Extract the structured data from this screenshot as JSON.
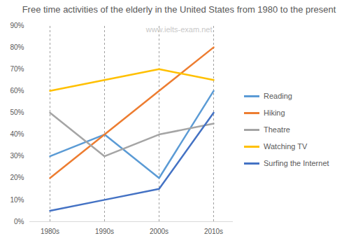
{
  "chart_data": {
    "type": "line",
    "title": "Free time activities of the elderly in the United States from 1980 to the present",
    "annotations": [
      "www.ielts-exam.net"
    ],
    "categories": [
      "1980s",
      "1990s",
      "2000s",
      "2010s"
    ],
    "series": [
      {
        "name": "Reading",
        "color": "#5b9bd5",
        "values": [
          30,
          40,
          20,
          60
        ]
      },
      {
        "name": "Hiking",
        "color": "#ed7d31",
        "values": [
          20,
          40,
          60,
          80
        ]
      },
      {
        "name": "Theatre",
        "color": "#a5a5a5",
        "values": [
          50,
          30,
          40,
          45
        ]
      },
      {
        "name": "Watching TV",
        "color": "#ffc000",
        "values": [
          60,
          65,
          70,
          65
        ]
      },
      {
        "name": "Surfing the Internet",
        "color": "#4472c4",
        "values": [
          5,
          10,
          15,
          50
        ]
      }
    ],
    "ylim": [
      0,
      90
    ],
    "yticks": [
      {
        "value": 0,
        "label": "0%"
      },
      {
        "value": 10,
        "label": "10%"
      },
      {
        "value": 20,
        "label": "20%"
      },
      {
        "value": 30,
        "label": "30%"
      },
      {
        "value": 40,
        "label": "40%"
      },
      {
        "value": 50,
        "label": "50%"
      },
      {
        "value": 60,
        "label": "60%"
      },
      {
        "value": 70,
        "label": "70%"
      },
      {
        "value": 80,
        "label": "80%"
      },
      {
        "value": 90,
        "label": "90%"
      }
    ],
    "grid": true,
    "legend": "right"
  }
}
